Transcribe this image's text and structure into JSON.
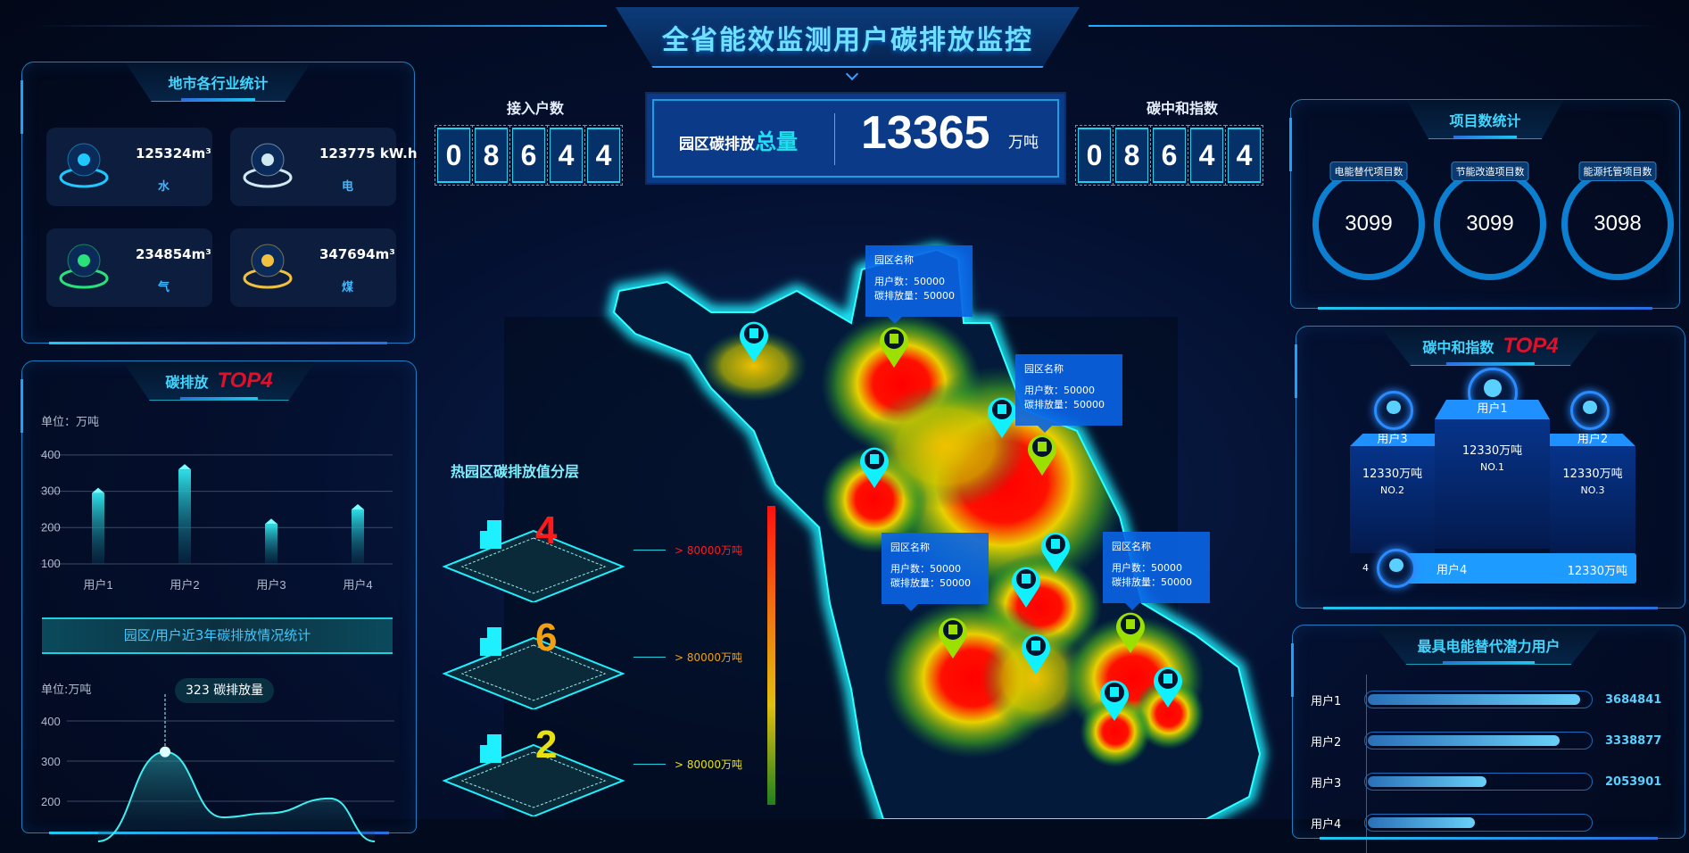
{
  "header": {
    "title": "全省能效监测用户碳排放监控"
  },
  "industry": {
    "title": "地市各行业统计",
    "cards": [
      {
        "value": "125324m³",
        "name": "水",
        "icon": "water-drop-icon",
        "color": "#1fc8ff"
      },
      {
        "value": "123775 kW.h",
        "name": "电",
        "icon": "lightning-icon",
        "color": "#d0e8f0"
      },
      {
        "value": "234854m³",
        "name": "气",
        "icon": "gas-icon",
        "color": "#2ae07a"
      },
      {
        "value": "347694m³",
        "name": "煤",
        "icon": "flame-icon",
        "color": "#f0c040"
      }
    ]
  },
  "carbon_top4": {
    "title": "碳排放",
    "badge": "TOP4",
    "unit": "单位：万吨"
  },
  "trend": {
    "banner": "园区/用户近3年碳排放情况统计",
    "unit": "单位:万吨",
    "tooltip_value": "323",
    "tooltip_label": "碳排放量"
  },
  "chart_data": [
    {
      "type": "bar",
      "categories": [
        "用户1",
        "用户2",
        "用户3",
        "用户4"
      ],
      "values": [
        295,
        360,
        210,
        250
      ],
      "ylabel": "单位：万吨",
      "yticks": [
        100,
        200,
        300,
        400
      ],
      "ylim": [
        100,
        400
      ],
      "grid": true
    },
    {
      "type": "area",
      "values": [
        100,
        323,
        160,
        170,
        207,
        100
      ],
      "ylabel": "单位:万吨",
      "yticks": [
        200,
        300,
        400
      ],
      "ylim": [
        150,
        400
      ],
      "grid": true,
      "highlight": {
        "value": 323,
        "label": "碳排放量"
      }
    }
  ],
  "access": {
    "label": "接入户数",
    "digits": [
      "0",
      "8",
      "6",
      "4",
      "4"
    ]
  },
  "total": {
    "label": "园区碳排放",
    "label_highlight": "总量",
    "value": "13365",
    "unit": "万吨"
  },
  "neutral": {
    "label": "碳中和指数",
    "digits": [
      "0",
      "8",
      "6",
      "4",
      "4"
    ]
  },
  "legend": {
    "title": "热园区碳排放值分层",
    "layers": [
      {
        "count": "4",
        "color": "#ff1a1a",
        "text": "> 80000万吨"
      },
      {
        "count": "6",
        "color": "#f0a010",
        "text": "> 80000万吨"
      },
      {
        "count": "2",
        "color": "#e8e010",
        "text": "> 80000万吨"
      }
    ],
    "gradient": [
      "#ff1010",
      "#f07010",
      "#e0c010",
      "#208020"
    ]
  },
  "tooltips": [
    {
      "title": "园区名称",
      "users": "用户数：50000",
      "carbon": "碳排放量：50000"
    },
    {
      "title": "园区名称",
      "users": "用户数：50000",
      "carbon": "碳排放量：50000"
    },
    {
      "title": "园区名称",
      "users": "用户数：50000",
      "carbon": "碳排放量：50000"
    },
    {
      "title": "园区名称",
      "users": "用户数：50000",
      "carbon": "碳排放量：50000"
    }
  ],
  "projects": {
    "title": "项目数统计",
    "items": [
      {
        "label": "电能替代项目数",
        "value": "3099"
      },
      {
        "label": "节能改造项目数",
        "value": "3099"
      },
      {
        "label": "能源托管项目数",
        "value": "3098"
      }
    ]
  },
  "neutral_top4": {
    "title": "碳中和指数",
    "badge": "TOP4",
    "ranks": [
      {
        "name": "用户1",
        "value": "12330万吨",
        "no": "NO.1"
      },
      {
        "name": "用户3",
        "value": "12330万吨",
        "no": "NO.2"
      },
      {
        "name": "用户2",
        "value": "12330万吨",
        "no": "NO.3"
      },
      {
        "rank": "4",
        "name": "用户4",
        "value": "12330万吨"
      }
    ]
  },
  "potential": {
    "title": "最具电能替代潜力用户",
    "rows": [
      {
        "name": "用户1",
        "value": "3684841",
        "fill_percent": 95
      },
      {
        "name": "用户2",
        "value": "3338877",
        "fill_percent": 86
      },
      {
        "name": "用户3",
        "value": "2053901",
        "fill_percent": 53
      },
      {
        "name": "用户4",
        "fill_percent": 48
      }
    ]
  }
}
